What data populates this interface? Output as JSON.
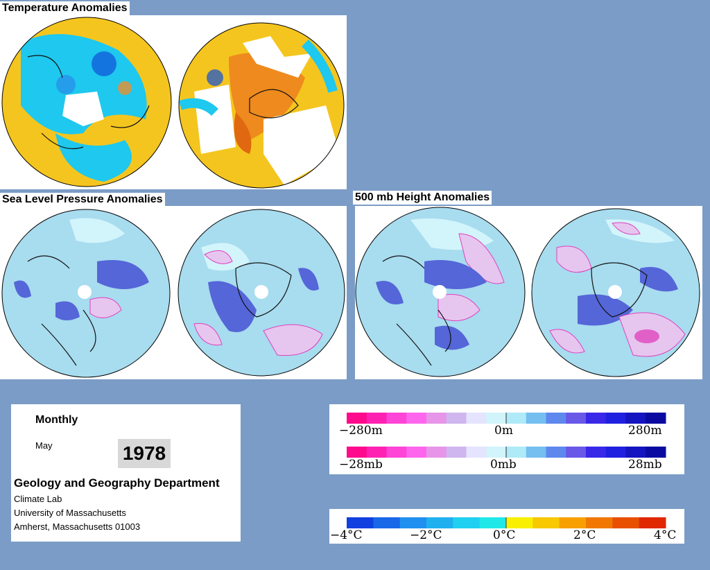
{
  "sections": {
    "temperature": "Temperature Anomalies",
    "slp": "Sea Level Pressure Anomalies",
    "h500": "500 mb Height Anomalies"
  },
  "info": {
    "period": "Monthly",
    "month": "May",
    "year": "1978",
    "department": "Geology and Geography Department",
    "lab": "Climate Lab",
    "university": "University of Massachusetts",
    "address": "Amherst, Massachusetts 01003"
  },
  "legends": {
    "height": {
      "min": "−280m",
      "mid": "0m",
      "max": "280m"
    },
    "pressure": {
      "min": "−28mb",
      "mid": "0mb",
      "max": "28mb"
    },
    "temperature": {
      "t1": "−4°C",
      "t2": "−2°C",
      "t3": "0°C",
      "t4": "2°C",
      "t5": "4°C"
    }
  },
  "colors": {
    "background": "#7b9cc6",
    "ocean_base_temp": "#1ec8ee",
    "warm": "#f5c51f",
    "anomaly_base": "#a8dcef",
    "positive_contour": "#e040c0",
    "negative_fill": "#5566d8",
    "height_pressure_scale": [
      "#ff0a8c",
      "#ff22b2",
      "#ff44d8",
      "#ff66ee",
      "#e695e8",
      "#cfb6ee",
      "#e4e4ff",
      "#d2f4fb",
      "#aeeaf8",
      "#74bff0",
      "#5e88ee",
      "#6a58e8",
      "#3a28e8",
      "#2020e0",
      "#1414c0",
      "#0a0aa0"
    ],
    "temperature_scale": [
      "#1040e0",
      "#1868e8",
      "#2090f0",
      "#20b0f0",
      "#20d0f0",
      "#20e8e8",
      "#f8f000",
      "#f8c800",
      "#f8a000",
      "#f07800",
      "#e85000",
      "#e02800"
    ]
  }
}
